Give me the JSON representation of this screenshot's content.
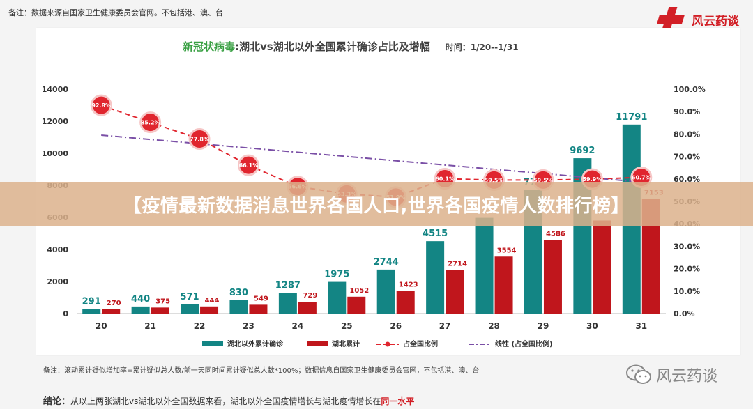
{
  "note_top": "备注：数据来源自国家卫生健康委员会官网。不包括港、澳、台",
  "brand": {
    "name": "风云药谈"
  },
  "title": {
    "prefix": "新冠状病毒",
    "main": ":湖北vs湖北以外全国累计确诊占比及增幅",
    "time": "时间：1/20--1/31"
  },
  "banner": "【疫情最新数据消息世界各国人口,世界各国疫情人数排行榜】",
  "bottom_note": "备注：滚动累计疑似增加率=累计疑似总人数/前一天同时间累计疑似总人数*100%；数据信息自国家卫生健康委员会官网，不包括港、澳、台",
  "conclusion": {
    "label": "结论：",
    "text": "从以上两张湖北vs湖北以外全国数据来看，湖北以外全国疫情增长与湖北疫情增长在",
    "emphasis": "同一水平"
  },
  "wechat": {
    "account": "风云药谈"
  },
  "colors": {
    "teal": "#138584",
    "red": "#c0161c",
    "pct_line": "#e0252e",
    "trend_line": "#7a4fa6"
  },
  "chart_data": {
    "type": "bar",
    "categories": [
      "20",
      "21",
      "22",
      "23",
      "24",
      "25",
      "26",
      "27",
      "28",
      "29",
      "30",
      "31"
    ],
    "series": [
      {
        "name": "湖北以外累计确诊",
        "kind": "bar",
        "color": "#138584",
        "values": [
          291,
          440,
          571,
          830,
          1287,
          1975,
          2744,
          4515,
          5974,
          7711,
          9692,
          11791
        ],
        "labels": [
          "291",
          "440",
          "571",
          "830",
          "1287",
          "1975",
          "2744",
          "4515",
          "",
          "77..",
          "9692",
          "11791"
        ]
      },
      {
        "name": "湖北累计",
        "kind": "bar",
        "color": "#c0161c",
        "values": [
          270,
          375,
          444,
          549,
          729,
          1052,
          1423,
          2714,
          3554,
          4586,
          5806,
          7153
        ],
        "labels": [
          "270",
          "375",
          "444",
          "549",
          "729",
          "1052",
          "1423",
          "2714",
          "3554",
          "4586",
          "",
          "7153"
        ]
      },
      {
        "name": "占全国比例",
        "kind": "line",
        "axis": "right",
        "color": "#e0252e",
        "values": [
          92.8,
          85.2,
          77.8,
          66.1,
          56.6,
          53.3,
          51.9,
          60.1,
          59.5,
          59.5,
          59.9,
          60.7
        ],
        "labels": [
          "92.8%",
          "85.2%",
          "77.8%",
          "66.1%",
          "56.6%",
          "53.3%",
          "51.9%",
          "60.1%",
          "59.5%",
          "59.5%",
          "59.9%",
          "60.7%"
        ]
      },
      {
        "name": "线性 (占全国比例)",
        "kind": "trend",
        "axis": "right",
        "color": "#7a4fa6",
        "values": [
          79.5,
          77.6,
          75.7,
          73.8,
          71.9,
          70.0,
          68.1,
          66.2,
          64.3,
          62.4,
          60.5,
          58.6
        ]
      }
    ],
    "ylim": [
      0,
      14000
    ],
    "yticks": [
      "0",
      "2000",
      "4000",
      "6000",
      "8000",
      "10000",
      "12000",
      "14000"
    ],
    "y2lim": [
      0,
      100
    ],
    "y2ticks": [
      "0.0%",
      "10.0%",
      "20.0%",
      "30.0%",
      "40.0%",
      "50.0%",
      "60.0%",
      "70.0%",
      "80.0%",
      "90.0%",
      "100.0%"
    ],
    "legend_position": "bottom",
    "grid": false
  }
}
